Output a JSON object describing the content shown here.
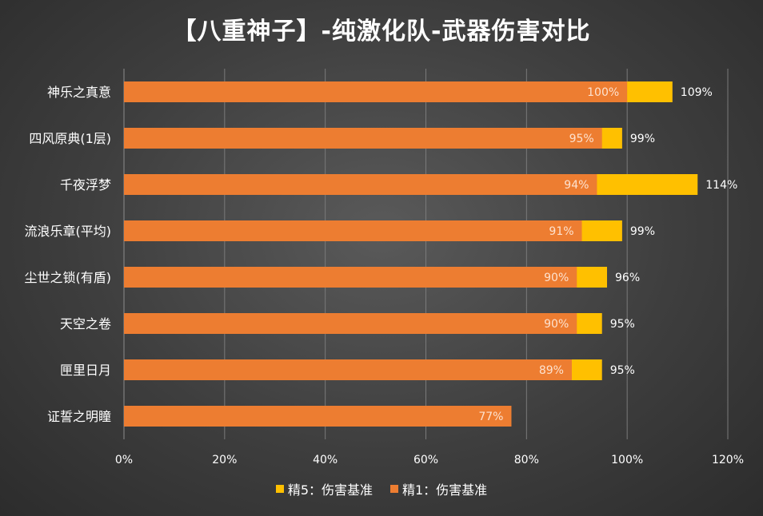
{
  "chart_data": {
    "type": "bar",
    "orientation": "horizontal",
    "title": "【八重神子】-纯激化队-武器伤害对比",
    "categories": [
      "神乐之真意",
      "四风原典(1层)",
      "千夜浮梦",
      "流浪乐章(平均)",
      "尘世之锁(有盾)",
      "天空之卷",
      "匣里日月",
      "证誓之明瞳"
    ],
    "series": [
      {
        "name": "精1：伤害基准",
        "color": "#ed7d31",
        "values": [
          100,
          95,
          94,
          91,
          90,
          90,
          89,
          77
        ],
        "labels": [
          "100%",
          "95%",
          "94%",
          "91%",
          "90%",
          "90%",
          "89%",
          "77%"
        ]
      },
      {
        "name": "精5：伤害基准",
        "color": "#ffc000",
        "values": [
          109,
          99,
          114,
          99,
          96,
          95,
          95,
          null
        ],
        "labels": [
          "109%",
          "99%",
          "114%",
          "99%",
          "96%",
          "95%",
          "95%",
          ""
        ]
      }
    ],
    "xlim": [
      0,
      120
    ],
    "xticks": [
      "0%",
      "20%",
      "40%",
      "60%",
      "80%",
      "100%",
      "120%"
    ],
    "xtick_values": [
      0,
      20,
      40,
      60,
      80,
      100,
      120
    ],
    "grid": true,
    "legend": {
      "position": "bottom",
      "entries": [
        {
          "name": "精5：伤害基准",
          "color": "#ffc000"
        },
        {
          "name": "精1：伤害基准",
          "color": "#ed7d31"
        }
      ]
    }
  }
}
